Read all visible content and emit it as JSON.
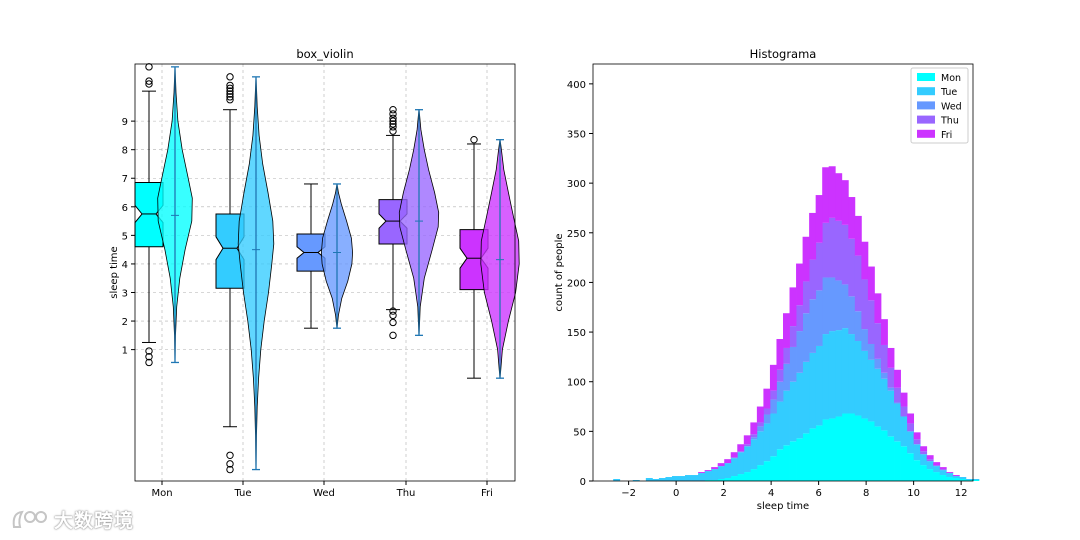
{
  "colors": [
    "#00ffff",
    "#33ccff",
    "#6699ff",
    "#9966ff",
    "#cc33ff"
  ],
  "chart_data": [
    {
      "type": "box_violin",
      "title": "box_violin",
      "xlabel": "",
      "ylabel": "sleep time",
      "categories": [
        "Mon",
        "Tue",
        "Wed",
        "Thu",
        "Fri"
      ],
      "ylim": [
        -3.6,
        11.0
      ],
      "yticks": [
        1,
        2,
        3,
        4,
        5,
        6,
        7,
        8,
        9
      ],
      "grid": true,
      "boxes": [
        {
          "name": "Mon",
          "q1": 4.6,
          "median": 5.75,
          "q3": 6.85,
          "notch_low": 5.45,
          "notch_high": 6.05,
          "whislo": 1.25,
          "whishi": 10.05,
          "fliers": [
            0.95,
            0.75,
            0.55,
            10.9,
            10.4,
            10.3
          ]
        },
        {
          "name": "Tue",
          "q1": 3.15,
          "median": 4.55,
          "q3": 5.75,
          "notch_low": 4.15,
          "notch_high": 4.95,
          "whislo": -1.7,
          "whishi": 9.4,
          "fliers": [
            -2.7,
            -3.0,
            -3.2,
            10.55,
            10.25,
            10.15,
            10.05,
            9.95,
            9.85,
            9.75
          ]
        },
        {
          "name": "Wed",
          "q1": 3.75,
          "median": 4.4,
          "q3": 5.05,
          "notch_low": 4.2,
          "notch_high": 4.6,
          "whislo": 1.75,
          "whishi": 6.8,
          "fliers": []
        },
        {
          "name": "Thu",
          "q1": 4.7,
          "median": 5.5,
          "q3": 6.25,
          "notch_low": 5.25,
          "notch_high": 5.75,
          "whislo": 2.4,
          "whishi": 8.5,
          "fliers": [
            9.4,
            9.25,
            9.1,
            9.0,
            8.9,
            8.8,
            8.65,
            2.35,
            2.2,
            1.95,
            1.5
          ]
        },
        {
          "name": "Fri",
          "q1": 3.1,
          "median": 4.2,
          "q3": 5.2,
          "notch_low": 3.85,
          "notch_high": 4.55,
          "whislo": 0.0,
          "whishi": 8.2,
          "fliers": [
            8.35
          ]
        }
      ],
      "violins": [
        {
          "name": "Mon",
          "min": 0.55,
          "max": 10.9,
          "mean": 5.7,
          "widths": [
            [
              0.55,
              0.005
            ],
            [
              1.5,
              0.02
            ],
            [
              2.5,
              0.07
            ],
            [
              3.5,
              0.2
            ],
            [
              4.5,
              0.42
            ],
            [
              5.5,
              0.7
            ],
            [
              6.3,
              0.72
            ],
            [
              7.0,
              0.55
            ],
            [
              8.0,
              0.3
            ],
            [
              9.0,
              0.12
            ],
            [
              10.0,
              0.04
            ],
            [
              10.9,
              0.005
            ]
          ]
        },
        {
          "name": "Tue",
          "min": -3.2,
          "max": 10.55,
          "mean": 4.5,
          "widths": [
            [
              -3.2,
              0.005
            ],
            [
              -2,
              0.02
            ],
            [
              -1,
              0.05
            ],
            [
              0,
              0.11
            ],
            [
              1,
              0.2
            ],
            [
              2,
              0.34
            ],
            [
              3,
              0.52
            ],
            [
              4,
              0.66
            ],
            [
              4.7,
              0.74
            ],
            [
              5.5,
              0.7
            ],
            [
              6.5,
              0.5
            ],
            [
              7.5,
              0.28
            ],
            [
              8.5,
              0.13
            ],
            [
              9.5,
              0.05
            ],
            [
              10.55,
              0.005
            ]
          ]
        },
        {
          "name": "Wed",
          "min": 1.75,
          "max": 6.8,
          "mean": 4.4,
          "widths": [
            [
              1.75,
              0.005
            ],
            [
              2.2,
              0.06
            ],
            [
              2.8,
              0.2
            ],
            [
              3.4,
              0.45
            ],
            [
              4.0,
              0.62
            ],
            [
              4.4,
              0.65
            ],
            [
              4.9,
              0.6
            ],
            [
              5.5,
              0.4
            ],
            [
              6.1,
              0.18
            ],
            [
              6.5,
              0.06
            ],
            [
              6.8,
              0.005
            ]
          ]
        },
        {
          "name": "Thu",
          "min": 1.5,
          "max": 9.4,
          "mean": 5.5,
          "widths": [
            [
              1.5,
              0.005
            ],
            [
              2.5,
              0.05
            ],
            [
              3.5,
              0.22
            ],
            [
              4.5,
              0.55
            ],
            [
              5.3,
              0.8
            ],
            [
              5.8,
              0.82
            ],
            [
              6.5,
              0.65
            ],
            [
              7.3,
              0.4
            ],
            [
              8.0,
              0.22
            ],
            [
              8.7,
              0.08
            ],
            [
              9.4,
              0.005
            ]
          ]
        },
        {
          "name": "Fri",
          "min": 0.0,
          "max": 8.35,
          "mean": 4.15,
          "widths": [
            [
              0.0,
              0.005
            ],
            [
              1.0,
              0.1
            ],
            [
              2.0,
              0.35
            ],
            [
              3.0,
              0.65
            ],
            [
              4.0,
              0.8
            ],
            [
              4.8,
              0.78
            ],
            [
              5.7,
              0.55
            ],
            [
              6.5,
              0.35
            ],
            [
              7.3,
              0.16
            ],
            [
              8.0,
              0.06
            ],
            [
              8.35,
              0.005
            ]
          ]
        }
      ]
    },
    {
      "type": "histogram",
      "title": "Histograma",
      "xlabel": "sleep time",
      "ylabel": "count of people",
      "stacked": true,
      "xlim": [
        -3.5,
        12.5
      ],
      "ylim": [
        0,
        420
      ],
      "xticks": [
        -2,
        0,
        2,
        4,
        6,
        8,
        10,
        12
      ],
      "yticks": [
        0,
        50,
        100,
        150,
        200,
        250,
        300,
        350,
        400
      ],
      "legend": {
        "position": "top-right",
        "labels": [
          "Mon",
          "Tue",
          "Wed",
          "Thu",
          "Fri"
        ]
      },
      "bin_start": -3.2,
      "bin_width": 0.275,
      "series": [
        {
          "name": "Mon",
          "values": [
            0,
            0,
            0,
            0,
            0,
            0,
            0,
            0,
            0,
            0,
            0,
            0,
            0,
            0,
            0,
            0,
            1,
            1,
            2,
            3,
            5,
            7,
            9,
            12,
            16,
            20,
            25,
            32,
            36,
            40,
            43,
            48,
            53,
            56,
            62,
            63,
            65,
            68,
            68,
            66,
            63,
            60,
            55,
            51,
            45,
            40,
            35,
            28,
            21,
            16,
            12,
            9,
            6,
            4,
            3,
            2,
            1,
            1,
            0,
            0,
            0,
            0,
            0,
            0,
            0,
            0,
            0,
            0,
            0,
            0,
            0,
            0
          ]
        },
        {
          "name": "Tue",
          "values": [
            0,
            0,
            2,
            0,
            0,
            1,
            0,
            3,
            2,
            3,
            4,
            5,
            5,
            6,
            6,
            8,
            9,
            11,
            13,
            15,
            18,
            22,
            26,
            30,
            34,
            38,
            43,
            48,
            55,
            60,
            66,
            72,
            76,
            80,
            86,
            88,
            87,
            86,
            80,
            75,
            68,
            62,
            58,
            52,
            46,
            38,
            30,
            22,
            16,
            11,
            8,
            6,
            5,
            4,
            2,
            2,
            1,
            1,
            0,
            0,
            0,
            0,
            0,
            0,
            0,
            0,
            0,
            0,
            0,
            0,
            0,
            0
          ]
        },
        {
          "name": "Wed",
          "values": [
            0,
            0,
            0,
            0,
            0,
            0,
            0,
            0,
            0,
            0,
            0,
            0,
            0,
            0,
            0,
            0,
            0,
            0,
            0,
            0,
            0,
            0,
            0,
            2,
            5,
            9,
            14,
            20,
            27,
            35,
            42,
            49,
            54,
            56,
            57,
            54,
            50,
            44,
            38,
            30,
            22,
            16,
            10,
            6,
            3,
            1,
            0,
            0,
            0,
            0,
            0,
            0,
            0,
            0,
            0,
            0,
            0,
            0,
            0,
            0,
            0,
            0,
            0,
            0,
            0,
            0,
            0,
            0,
            0,
            0,
            0,
            0
          ]
        },
        {
          "name": "Thu",
          "values": [
            0,
            0,
            0,
            0,
            0,
            0,
            0,
            0,
            0,
            0,
            0,
            0,
            0,
            0,
            0,
            0,
            0,
            0,
            0,
            0,
            1,
            1,
            2,
            3,
            4,
            6,
            9,
            12,
            16,
            21,
            26,
            32,
            40,
            48,
            55,
            60,
            60,
            60,
            58,
            56,
            50,
            44,
            36,
            28,
            20,
            15,
            10,
            8,
            5,
            3,
            2,
            1,
            1,
            0,
            0,
            0,
            0,
            0,
            0,
            0,
            0,
            0,
            0,
            0,
            0,
            0,
            0,
            0,
            0,
            0,
            0,
            0
          ]
        },
        {
          "name": "Fri",
          "values": [
            0,
            0,
            0,
            0,
            0,
            0,
            0,
            0,
            0,
            0,
            0,
            0,
            0,
            0,
            0,
            1,
            1,
            2,
            3,
            4,
            5,
            7,
            9,
            12,
            16,
            20,
            26,
            31,
            35,
            39,
            42,
            45,
            47,
            48,
            56,
            52,
            48,
            45,
            42,
            40,
            38,
            34,
            30,
            26,
            20,
            18,
            14,
            10,
            7,
            5,
            4,
            3,
            2,
            1,
            1,
            0,
            0,
            0,
            0,
            0,
            0,
            0,
            0,
            0,
            0,
            0,
            0,
            0,
            0,
            0,
            0,
            0
          ]
        }
      ]
    }
  ],
  "watermark": {
    "text": "大数跨境"
  }
}
